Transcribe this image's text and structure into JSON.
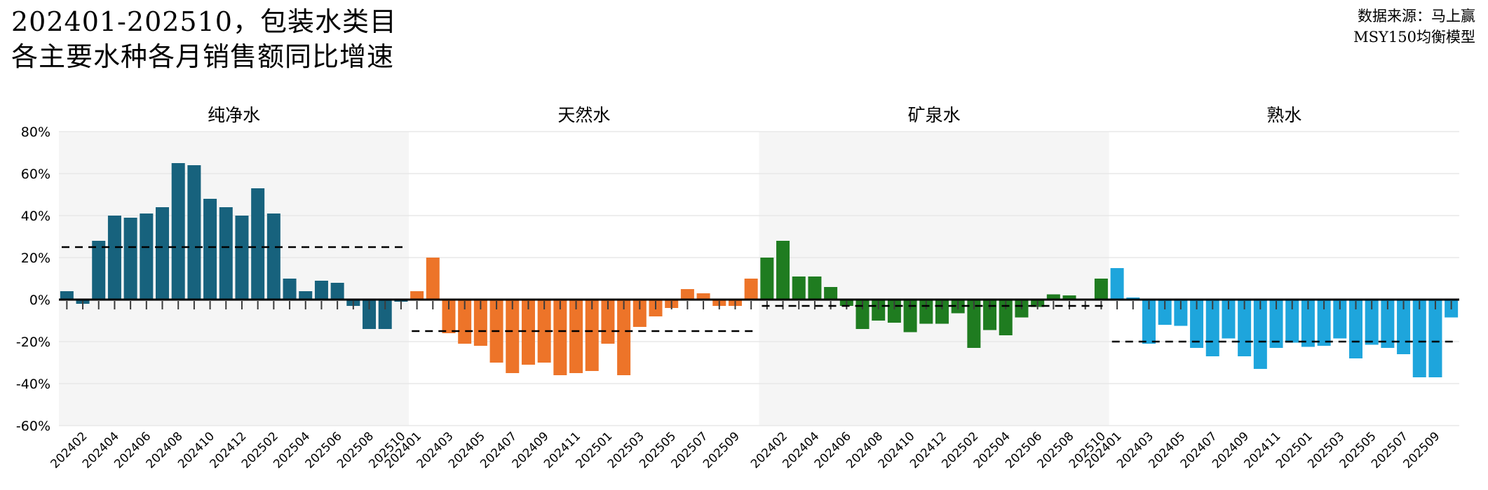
{
  "header": {
    "title_line1": "202401-202510，包装水类目",
    "title_line2": "各主要水种各月销售额同比增速",
    "source_line1": "数据来源：马上赢",
    "source_line2": "MSY150均衡模型"
  },
  "axis": {
    "y_tick_labels": [
      "80%",
      "60%",
      "40%",
      "20%",
      "0%",
      "-20%",
      "-40%",
      "-60%"
    ],
    "y_tick_values": [
      80,
      60,
      40,
      20,
      0,
      -20,
      -40,
      -60
    ],
    "y_max": 80,
    "y_min": -60,
    "grid": true
  },
  "chart_data": {
    "type": "bar",
    "unit": "percent_yoy_growth",
    "months": [
      "202401",
      "202402",
      "202403",
      "202404",
      "202405",
      "202406",
      "202407",
      "202408",
      "202409",
      "202410",
      "202411",
      "202412",
      "202501",
      "202502",
      "202503",
      "202504",
      "202505",
      "202506",
      "202507",
      "202508",
      "202509",
      "202510"
    ],
    "panels": [
      {
        "title": "纯净水",
        "color": "#17627d",
        "bg": "#f5f5f5",
        "dashed_mean_line": 25,
        "x_label_start_index": 1,
        "values": [
          4,
          -2,
          28,
          40,
          39,
          41,
          44,
          65,
          64,
          48,
          44,
          40,
          53,
          41,
          10,
          4,
          9,
          8,
          -3,
          -14,
          -14,
          -1
        ]
      },
      {
        "title": "天然水",
        "color": "#ed7429",
        "bg": "#ffffff",
        "dashed_mean_line": -15,
        "x_label_start_index": 0,
        "values": [
          4,
          20,
          -16,
          -21,
          -22,
          -30,
          -35,
          -31,
          -30,
          -36,
          -35,
          -34,
          -21,
          -36,
          -13,
          -8,
          -4,
          5,
          3,
          -3,
          -3,
          10
        ]
      },
      {
        "title": "矿泉水",
        "color": "#1f7c20",
        "bg": "#f5f5f5",
        "dashed_mean_line": -3,
        "x_label_start_index": 1,
        "values": [
          20,
          28,
          11,
          11,
          6,
          -3,
          -14,
          -10,
          -11,
          -15.5,
          -11.5,
          -11.5,
          -6.5,
          -23,
          -14.5,
          -17,
          -8.5,
          -3.5,
          2.5,
          2,
          0,
          10
        ]
      },
      {
        "title": "熟水",
        "color": "#1ea5dc",
        "bg": "#ffffff",
        "dashed_mean_line": -20,
        "x_label_start_index": 0,
        "values": [
          15,
          1,
          -21,
          -12,
          -12.5,
          -23,
          -27,
          -18.5,
          -27,
          -33,
          -23,
          -20.5,
          -22.5,
          -22,
          -18.5,
          -28,
          -21.5,
          -23,
          -26,
          -37,
          -37,
          -8.5
        ]
      }
    ]
  }
}
